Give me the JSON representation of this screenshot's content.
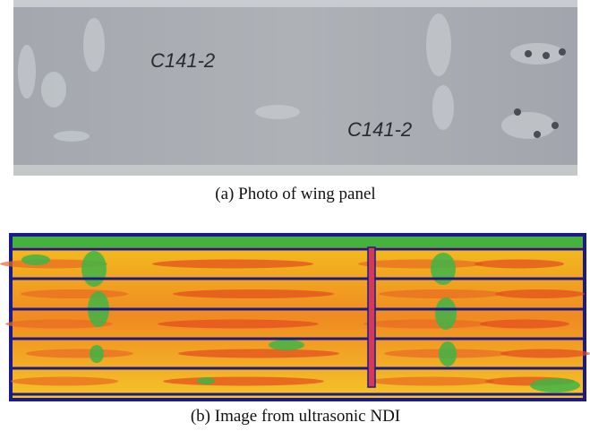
{
  "figure": {
    "panels": [
      {
        "caption": "(a) Photo of wing panel",
        "markings": [
          "C141-2",
          "C141-2"
        ]
      },
      {
        "caption": "(b) Image from ultrasonic NDI"
      }
    ]
  }
}
